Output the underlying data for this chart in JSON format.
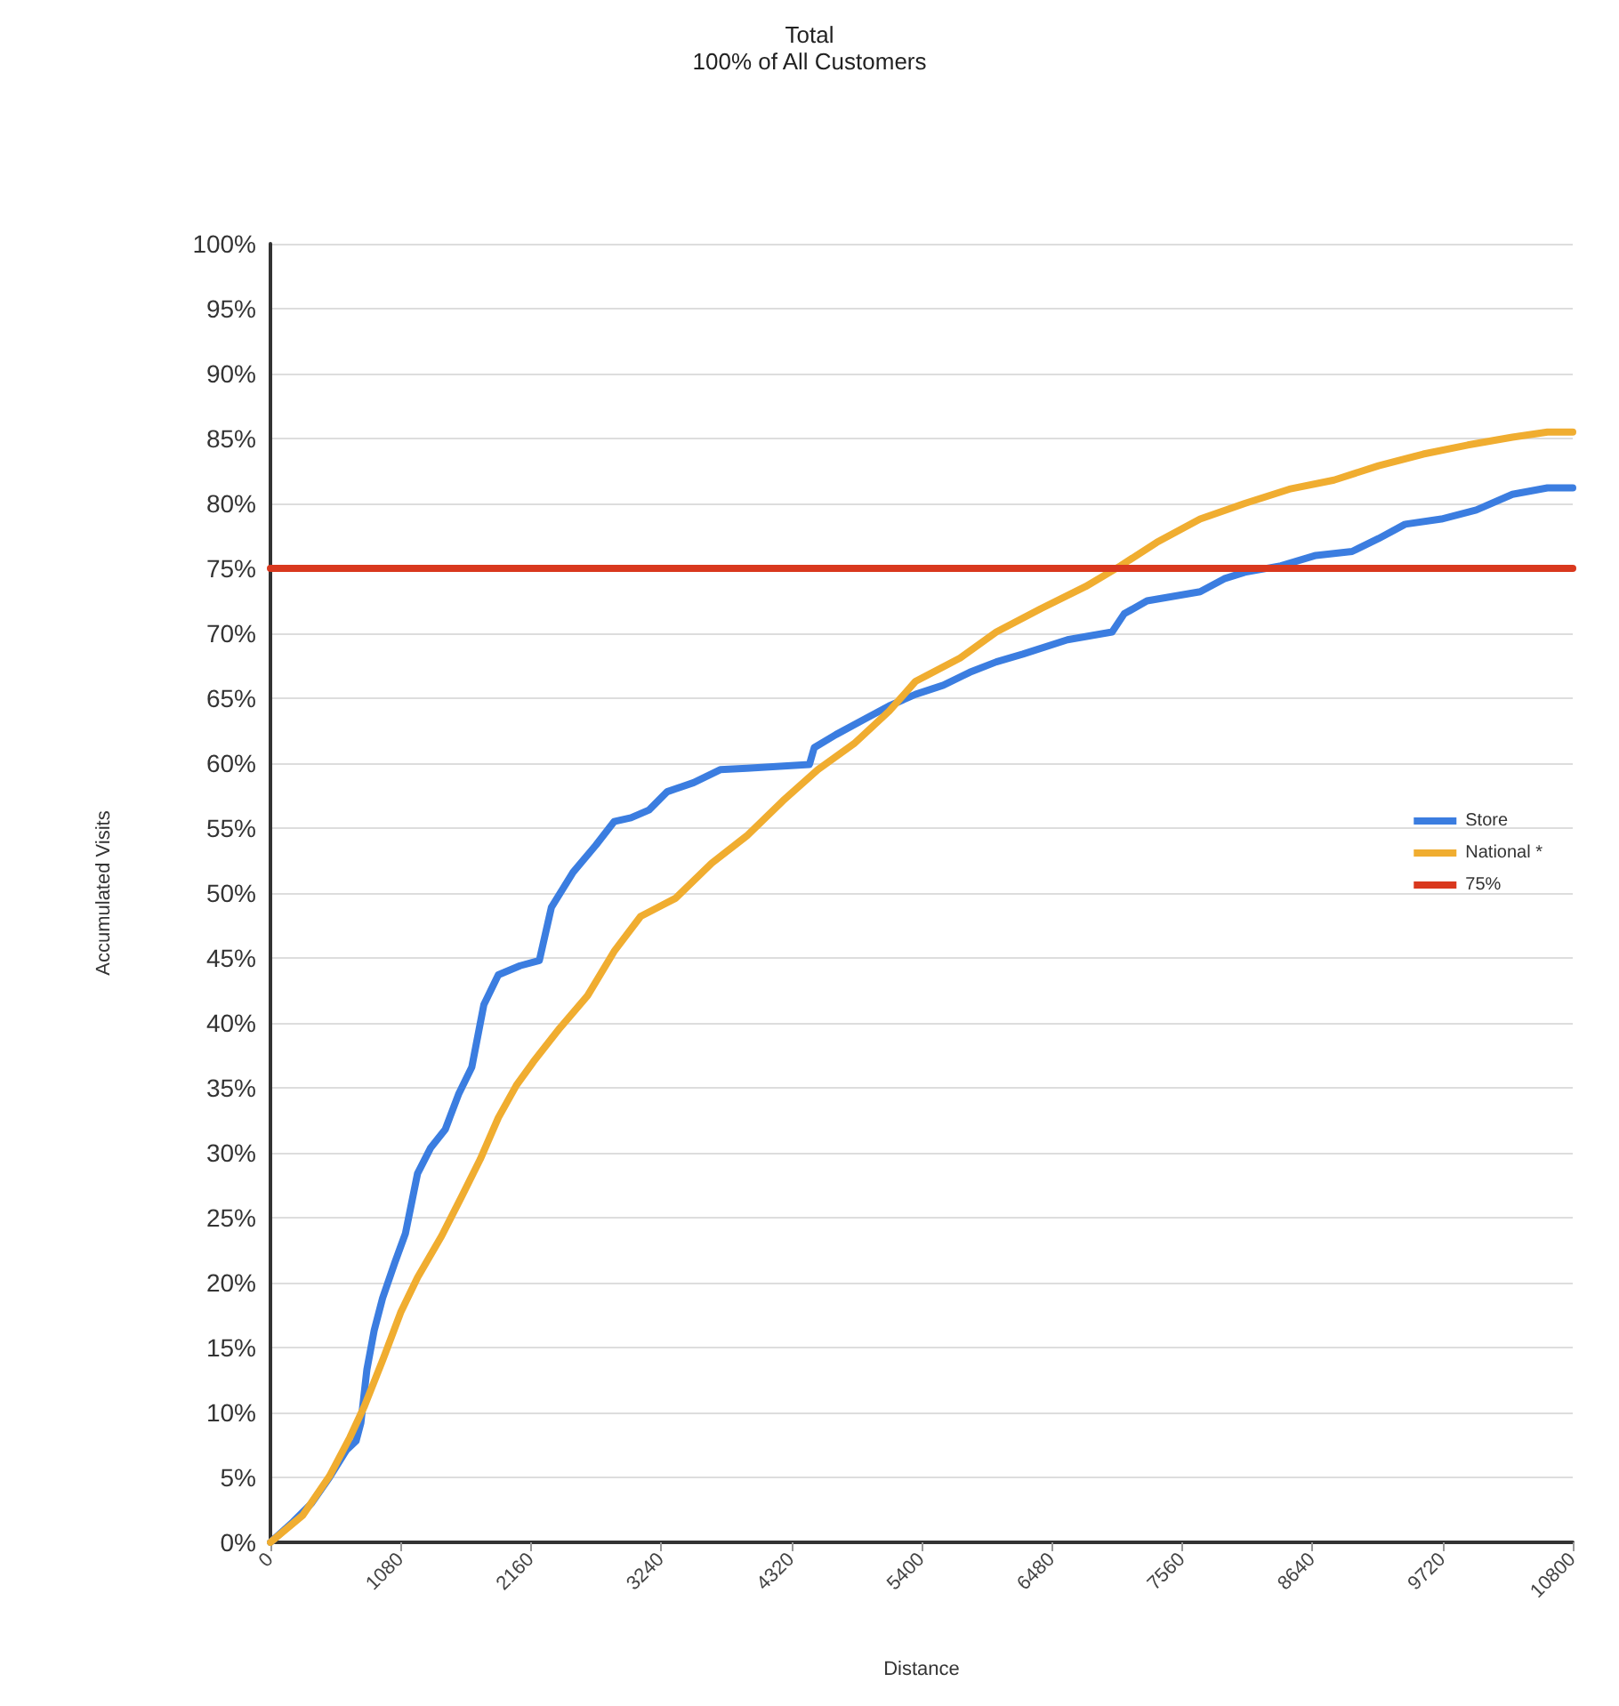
{
  "chart_data": {
    "type": "line",
    "title": "Total",
    "subtitle": "100% of All Customers",
    "xlabel": "Distance",
    "ylabel": "Accumulated Visits",
    "xlim": [
      0,
      10800
    ],
    "xticks": [
      0,
      1080,
      2160,
      3240,
      4320,
      5400,
      6480,
      7560,
      8640,
      9720,
      10800
    ],
    "ylim": [
      0,
      100
    ],
    "yticks": [
      {
        "value": 0,
        "label": "0%"
      },
      {
        "value": 5,
        "label": "5%"
      },
      {
        "value": 10,
        "label": "10%"
      },
      {
        "value": 15,
        "label": "15%"
      },
      {
        "value": 20,
        "label": "20%"
      },
      {
        "value": 25,
        "label": "25%"
      },
      {
        "value": 30,
        "label": "30%"
      },
      {
        "value": 35,
        "label": "35%"
      },
      {
        "value": 40,
        "label": "40%"
      },
      {
        "value": 45,
        "label": "45%"
      },
      {
        "value": 50,
        "label": "50%"
      },
      {
        "value": 55,
        "label": "55%"
      },
      {
        "value": 60,
        "label": "60%"
      },
      {
        "value": 65,
        "label": "65%"
      },
      {
        "value": 70,
        "label": "70%"
      },
      {
        "value": 75,
        "label": "75%"
      },
      {
        "value": 80,
        "label": "80%"
      },
      {
        "value": 85,
        "label": "85%"
      },
      {
        "value": 90,
        "label": "90%"
      },
      {
        "value": 95,
        "label": "95%"
      },
      {
        "value": 100,
        "label": "100%"
      }
    ],
    "grid": "y",
    "legend": "right",
    "marker": "none",
    "line_style": "solid",
    "series": [
      {
        "name": "Store",
        "color": "#3b7de0",
        "x": [
          0,
          190,
          340,
          490,
          630,
          710,
          750,
          800,
          860,
          930,
          1030,
          1120,
          1220,
          1330,
          1450,
          1560,
          1670,
          1770,
          1890,
          2070,
          2230,
          2330,
          2510,
          2700,
          2850,
          2990,
          3140,
          3290,
          3510,
          3730,
          3950,
          4470,
          4510,
          4690,
          4910,
          5130,
          5350,
          5580,
          5800,
          6020,
          6240,
          6610,
          6980,
          7080,
          7270,
          7710,
          7910,
          8080,
          8380,
          8670,
          8970,
          9190,
          9410,
          9710,
          10000,
          10300,
          10590,
          10800
        ],
        "values": [
          0,
          1.6,
          3,
          5,
          7.1,
          7.8,
          9.2,
          13.3,
          16.3,
          18.8,
          21.5,
          23.8,
          28.4,
          30.4,
          31.8,
          34.5,
          36.6,
          41.4,
          43.7,
          44.4,
          44.8,
          48.9,
          51.6,
          53.7,
          55.5,
          55.8,
          56.4,
          57.8,
          58.5,
          59.5,
          59.6,
          59.9,
          61.2,
          62.2,
          63.3,
          64.4,
          65.3,
          66,
          67,
          67.8,
          68.4,
          69.5,
          70.1,
          71.5,
          72.5,
          73.2,
          74.2,
          74.7,
          75.2,
          76,
          76.3,
          77.3,
          78.4,
          78.8,
          79.5,
          80.7,
          81.2,
          81.2
        ]
      },
      {
        "name": "National *",
        "color": "#f0ad30",
        "x": [
          0,
          270,
          490,
          660,
          780,
          930,
          1080,
          1220,
          1420,
          1590,
          1740,
          1890,
          2040,
          2180,
          2400,
          2630,
          2850,
          3070,
          3360,
          3660,
          3950,
          4250,
          4540,
          4840,
          5130,
          5350,
          5720,
          6020,
          6390,
          6760,
          7050,
          7350,
          7710,
          8080,
          8450,
          8820,
          9190,
          9560,
          9930,
          10300,
          10590,
          10800
        ],
        "values": [
          0,
          2.1,
          5.1,
          8.1,
          10.5,
          14,
          17.7,
          20.4,
          23.6,
          26.7,
          29.5,
          32.7,
          35.2,
          37,
          39.6,
          42.1,
          45.5,
          48.2,
          49.6,
          52.3,
          54.4,
          57.1,
          59.5,
          61.5,
          64,
          66.3,
          68.1,
          70.1,
          71.9,
          73.6,
          75.2,
          77,
          78.8,
          80,
          81.1,
          81.8,
          82.9,
          83.8,
          84.5,
          85.1,
          85.5,
          85.5
        ]
      },
      {
        "name": "75%",
        "color": "#d9381e",
        "x": [
          0,
          10800
        ],
        "values": [
          75,
          75
        ]
      }
    ]
  }
}
